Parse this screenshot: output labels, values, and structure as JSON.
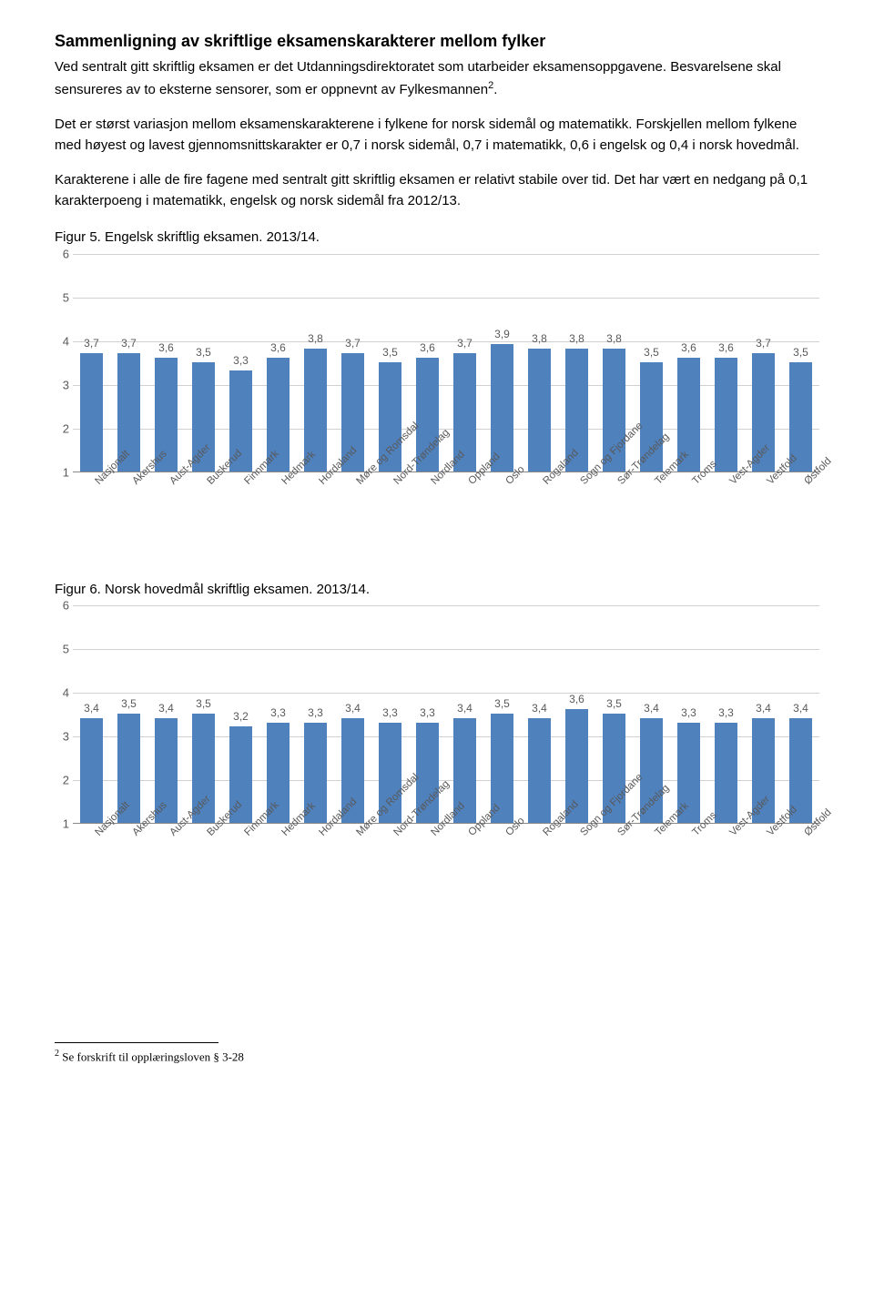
{
  "title": "Sammenligning av skriftlige eksamenskarakterer mellom fylker",
  "para1_a": "Ved sentralt gitt skriftlig eksamen er det Utdanningsdirektoratet som utarbeider eksamensoppgavene. Besvarelsene skal sensureres av to eksterne sensorer, som er oppnevnt av Fylkesmannen",
  "para1_sup": "2",
  "para1_b": ".",
  "para2": "Det er størst variasjon mellom eksamenskarakterene i fylkene for norsk sidemål og matematikk. Forskjellen mellom fylkene med høyest og lavest gjennomsnittskarakter er 0,7 i norsk sidemål, 0,7 i matematikk, 0,6 i engelsk og 0,4 i norsk hovedmål.",
  "para3": "Karakterene i alle de fire fagene med sentralt gitt skriftlig eksamen er relativt stabile over tid. Det har vært en nedgang på 0,1 karakterpoeng i matematikk, engelsk og norsk sidemål fra 2012/13.",
  "figure5_title": "Figur 5. Engelsk skriftlig eksamen. 2013/14.",
  "figure6_title": "Figur 6. Norsk hovedmål skriftlig eksamen. 2013/14.",
  "categories": [
    "Nasjonalt",
    "Akershus",
    "Aust-Agder",
    "Buskerud",
    "Finnmark",
    "Hedmark",
    "Hordaland",
    "Møre og Romsdal",
    "Nord-Trøndelag",
    "Nordland",
    "Oppland",
    "Oslo",
    "Rogaland",
    "Sogn og Fjordane",
    "Sør-Trøndelag",
    "Telemark",
    "Troms",
    "Vest-Agder",
    "Vestfold",
    "Østfold"
  ],
  "chart5": {
    "values": [
      3.7,
      3.7,
      3.6,
      3.5,
      3.3,
      3.6,
      3.8,
      3.7,
      3.5,
      3.6,
      3.7,
      3.9,
      3.8,
      3.8,
      3.8,
      3.5,
      3.6,
      3.6,
      3.7,
      3.5
    ],
    "labels": [
      "3,7",
      "3,7",
      "3,6",
      "3,5",
      "3,3",
      "3,6",
      "3,8",
      "3,7",
      "3,5",
      "3,6",
      "3,7",
      "3,9",
      "3,8",
      "3,8",
      "3,8",
      "3,5",
      "3,6",
      "3,6",
      "3,7",
      "3,5"
    ],
    "bar_color": "#4f81bd",
    "ymin": 1,
    "ymax": 6,
    "yticks": [
      1,
      2,
      3,
      4,
      5,
      6
    ]
  },
  "chart6": {
    "values": [
      3.4,
      3.5,
      3.4,
      3.5,
      3.2,
      3.3,
      3.3,
      3.4,
      3.3,
      3.3,
      3.4,
      3.5,
      3.4,
      3.6,
      3.5,
      3.4,
      3.3,
      3.3,
      3.4,
      3.4
    ],
    "labels": [
      "3,4",
      "3,5",
      "3,4",
      "3,5",
      "3,2",
      "3,3",
      "3,3",
      "3,4",
      "3,3",
      "3,3",
      "3,4",
      "3,5",
      "3,4",
      "3,6",
      "3,5",
      "3,4",
      "3,3",
      "3,3",
      "3,4",
      "3,4"
    ],
    "bar_color": "#4f81bd",
    "ymin": 1,
    "ymax": 6,
    "yticks": [
      1,
      2,
      3,
      4,
      5,
      6
    ]
  },
  "footnote_sup": "2",
  "footnote_text": " Se forskrift til opplæringsloven § 3-28"
}
